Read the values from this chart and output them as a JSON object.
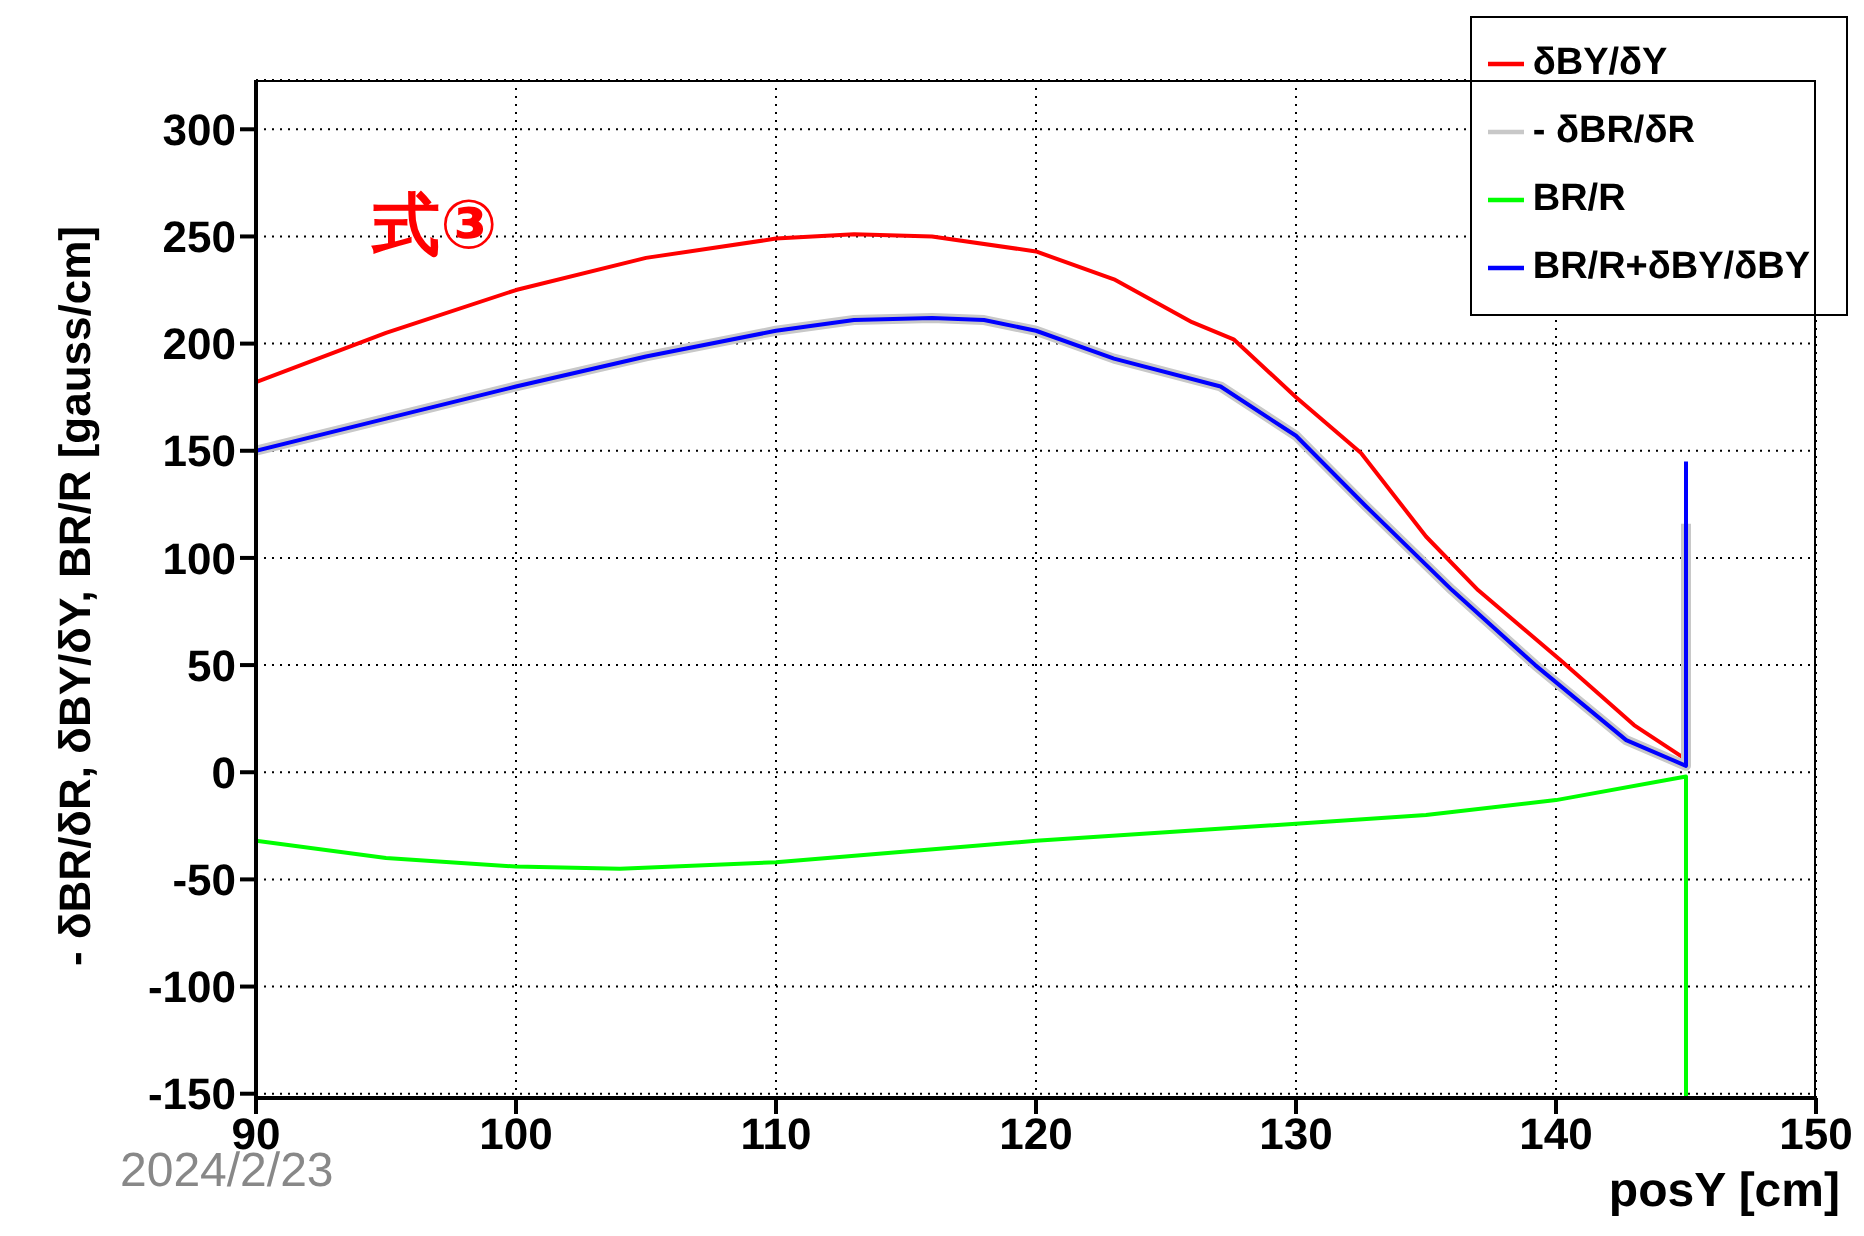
{
  "chart_data": {
    "type": "line",
    "xlabel": "posY [cm]",
    "ylabel": "- δBR/δR, δBY/δY, BR/R [gauss/cm]",
    "xlim": [
      90,
      150
    ],
    "xticks": [
      90,
      100,
      110,
      120,
      130,
      140,
      150
    ],
    "ylim": [
      -152,
      323
    ],
    "yticks": [
      -150,
      -100,
      -50,
      0,
      50,
      100,
      150,
      200,
      250,
      300
    ],
    "grid": true,
    "legend": "top right",
    "marker": "none",
    "line_style": "solid",
    "annotations": [
      "式③",
      "2024/2/23"
    ],
    "series": [
      {
        "name": "δBY/δY",
        "color": "#ff0000",
        "x": [
          90,
          95,
          100,
          105,
          110,
          113,
          116,
          120,
          123,
          126,
          127.6,
          130,
          132.5,
          135,
          137,
          140.2,
          143,
          145
        ],
        "values": [
          182,
          205,
          225,
          240,
          249,
          251,
          250,
          243,
          230,
          210,
          202,
          175,
          149,
          110,
          85,
          52,
          22,
          6
        ]
      },
      {
        "name": "- δBR/δR",
        "color": "#c8c8c8",
        "x": [
          90,
          95,
          100,
          105,
          110,
          113,
          116,
          118,
          120,
          123,
          127.1,
          130,
          132.7,
          136,
          139.2,
          142.7,
          145,
          145
        ],
        "values": [
          150,
          165,
          180,
          194,
          206,
          211,
          212,
          211,
          206,
          193,
          180,
          157,
          124,
          85,
          50,
          15,
          3,
          116
        ]
      },
      {
        "name": "BR/R",
        "color": "#00ff00",
        "x": [
          90,
          95,
          100,
          104,
          110,
          115,
          120,
          125,
          130,
          135,
          140,
          145,
          145
        ],
        "values": [
          -32,
          -40,
          -44,
          -45,
          -42,
          -37,
          -32,
          -28,
          -24,
          -20,
          -13,
          -2,
          -152
        ]
      },
      {
        "name": "BR/R+δBY/δBY",
        "color": "#0000ff",
        "x": [
          90,
          95,
          100,
          105,
          110,
          113,
          116,
          118,
          120,
          123,
          127.1,
          130,
          132.7,
          136,
          139.2,
          142.7,
          145,
          145
        ],
        "values": [
          150,
          165,
          180,
          194,
          206,
          211,
          212,
          211,
          206,
          193,
          180,
          157,
          124,
          85,
          50,
          15,
          3,
          145
        ]
      }
    ]
  }
}
